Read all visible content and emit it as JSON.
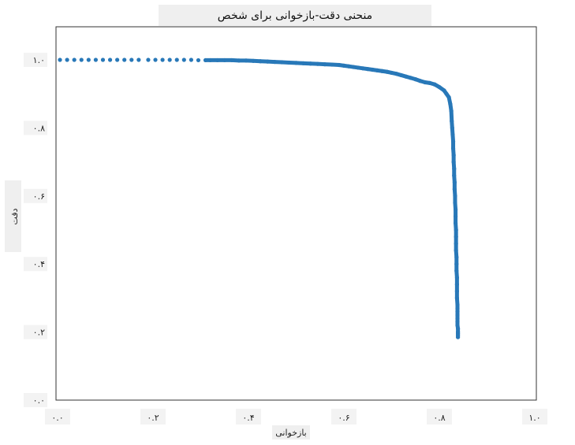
{
  "chart_data": {
    "type": "scatter",
    "title": "منحنی دقت-بازخوانی برای شخص",
    "xlabel": "بازخوانی",
    "ylabel": "دقت",
    "xlim": [
      0.0,
      1.0
    ],
    "ylim": [
      0.0,
      1.0
    ],
    "x_ticks": [
      "۰.۰",
      "۰.۲",
      "۰.۴",
      "۰.۶",
      "۰.۸",
      "۱.۰"
    ],
    "y_ticks": [
      "۰.۰",
      "۰.۲",
      "۰.۴",
      "۰.۶",
      "۰.۸",
      "۱.۰"
    ],
    "grid": false,
    "legend": "none",
    "point_color": "#2878b8",
    "x": [
      0.005,
      0.02,
      0.035,
      0.05,
      0.065,
      0.08,
      0.095,
      0.11,
      0.125,
      0.14,
      0.155,
      0.17,
      0.19,
      0.205,
      0.22,
      0.235,
      0.25,
      0.265,
      0.28,
      0.295,
      0.31,
      0.32,
      0.335,
      0.35,
      0.365,
      0.38,
      0.395,
      0.41,
      0.425,
      0.44,
      0.455,
      0.47,
      0.485,
      0.5,
      0.515,
      0.53,
      0.545,
      0.56,
      0.575,
      0.59,
      0.6,
      0.61,
      0.62,
      0.63,
      0.64,
      0.65,
      0.66,
      0.67,
      0.68,
      0.69,
      0.7,
      0.71,
      0.72,
      0.73,
      0.74,
      0.75,
      0.76,
      0.77,
      0.78,
      0.79,
      0.8,
      0.81,
      0.815,
      0.82,
      0.823,
      0.825,
      0.826,
      0.827,
      0.828,
      0.829,
      0.829,
      0.83,
      0.83,
      0.831,
      0.831,
      0.832,
      0.832,
      0.833,
      0.833,
      0.834,
      0.834,
      0.834,
      0.835,
      0.835,
      0.835,
      0.835,
      0.836,
      0.836,
      0.836,
      0.837,
      0.837,
      0.837,
      0.837,
      0.838,
      0.838,
      0.838,
      0.838,
      0.838,
      0.838,
      0.838,
      0.839,
      0.839,
      0.839,
      0.839,
      0.839
    ],
    "y": [
      1.0,
      1.0,
      1.0,
      1.0,
      1.0,
      1.0,
      1.0,
      1.0,
      1.0,
      1.0,
      1.0,
      1.0,
      1.0,
      1.0,
      1.0,
      1.0,
      1.0,
      1.0,
      1.0,
      0.999,
      0.999,
      0.999,
      0.999,
      0.999,
      0.999,
      0.998,
      0.998,
      0.997,
      0.996,
      0.995,
      0.994,
      0.993,
      0.992,
      0.991,
      0.99,
      0.989,
      0.988,
      0.987,
      0.986,
      0.985,
      0.983,
      0.981,
      0.979,
      0.977,
      0.975,
      0.973,
      0.971,
      0.969,
      0.967,
      0.965,
      0.962,
      0.959,
      0.955,
      0.951,
      0.947,
      0.943,
      0.938,
      0.934,
      0.932,
      0.928,
      0.92,
      0.91,
      0.9,
      0.89,
      0.87,
      0.85,
      0.82,
      0.8,
      0.78,
      0.76,
      0.74,
      0.72,
      0.7,
      0.68,
      0.66,
      0.64,
      0.62,
      0.6,
      0.58,
      0.56,
      0.54,
      0.52,
      0.5,
      0.48,
      0.46,
      0.44,
      0.42,
      0.4,
      0.38,
      0.36,
      0.34,
      0.32,
      0.3,
      0.28,
      0.27,
      0.26,
      0.25,
      0.24,
      0.23,
      0.22,
      0.21,
      0.2,
      0.195,
      0.19,
      0.185
    ]
  }
}
